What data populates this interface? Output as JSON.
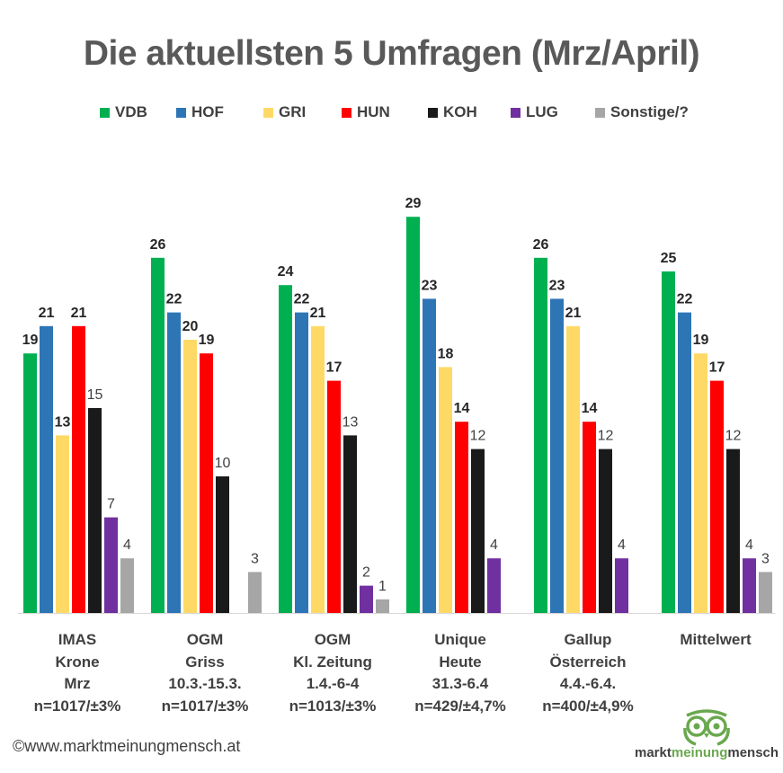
{
  "chart_data": {
    "type": "bar",
    "title": "Die aktuellsten 5 Umfragen (Mrz/April)",
    "xlabel": "",
    "ylabel": "",
    "ylim": [
      0,
      30
    ],
    "grid": false,
    "legend_position": "top",
    "categories": [
      {
        "lines": [
          "IMAS",
          "Krone",
          "Mrz",
          "n=1017/±3%"
        ]
      },
      {
        "lines": [
          "OGM",
          "Griss",
          "10.3.-15.3.",
          "n=1017/±3%"
        ]
      },
      {
        "lines": [
          "OGM",
          "Kl. Zeitung",
          "1.4.-6-4",
          "n=1013/±3%"
        ]
      },
      {
        "lines": [
          "Unique",
          "Heute",
          "31.3-6.4",
          "n=429/±4,7%"
        ]
      },
      {
        "lines": [
          "Gallup",
          "Österreich",
          "4.4.-6.4.",
          "n=400/±4,9%"
        ]
      },
      {
        "lines": [
          "Mittelwert"
        ]
      }
    ],
    "series": [
      {
        "name": "VDB",
        "color": "#00b050",
        "label_bold": true,
        "values": [
          19,
          26,
          24,
          29,
          26,
          25
        ]
      },
      {
        "name": "HOF",
        "color": "#2e75b6",
        "label_bold": true,
        "values": [
          21,
          22,
          22,
          23,
          23,
          22
        ]
      },
      {
        "name": "GRI",
        "color": "#ffd966",
        "label_bold": true,
        "values": [
          13,
          20,
          21,
          18,
          21,
          19
        ]
      },
      {
        "name": "HUN",
        "color": "#ff0000",
        "label_bold": true,
        "values": [
          21,
          19,
          17,
          14,
          14,
          17
        ]
      },
      {
        "name": "KOH",
        "color": "#1a1a1a",
        "label_bold": false,
        "values": [
          15,
          10,
          13,
          12,
          12,
          12
        ]
      },
      {
        "name": "LUG",
        "color": "#7030a0",
        "label_bold": false,
        "values": [
          7,
          null,
          2,
          4,
          4,
          4
        ]
      },
      {
        "name": "Sonstige/?",
        "color": "#a6a6a6",
        "label_bold": false,
        "values": [
          4,
          3,
          1,
          null,
          null,
          3
        ]
      }
    ]
  },
  "footer": {
    "copyright": "©www.marktmeinungmensch.at",
    "logo_text_left": "markt",
    "logo_text_mid": "meinung",
    "logo_text_right": "mensch"
  }
}
